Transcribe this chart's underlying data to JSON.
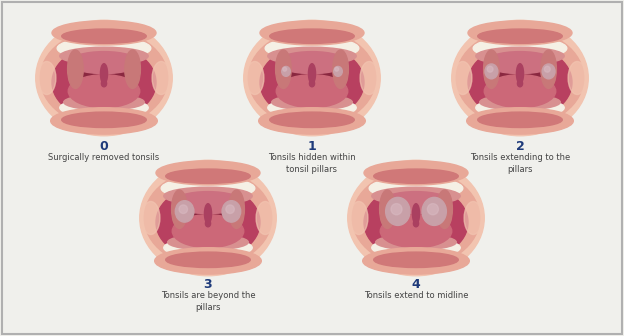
{
  "background_color": "#f0f0ec",
  "border_color": "#b0b0b0",
  "num_color": "#1e3a7a",
  "label_color": "#444444",
  "fig_width": 6.24,
  "fig_height": 3.36,
  "dpi": 100,
  "skin_color": "#f2c4b0",
  "lip_outer_color": "#e8a898",
  "lip_inner_color": "#d07878",
  "mouth_open_color": "#b84060",
  "teeth_color": "#f5f0e5",
  "gum_color": "#d89090",
  "throat_color": "#8a2840",
  "tongue_color": "#cc6878",
  "palate_color": "#cc7080",
  "pillar_color": "#c87878",
  "tonsil_color": "#c8a0a8",
  "uvula_color": "#aa4060",
  "grades": [
    {
      "num": "0",
      "label": "Surgically removed tonsils"
    },
    {
      "num": "1",
      "label": "Tonsils hidden within\ntonsil pillars"
    },
    {
      "num": "2",
      "label": "Tonsils extending to the\npillars"
    },
    {
      "num": "3",
      "label": "Tonsils are beyond the\npillars"
    },
    {
      "num": "4",
      "label": "Tonsils extend to midline"
    }
  ]
}
